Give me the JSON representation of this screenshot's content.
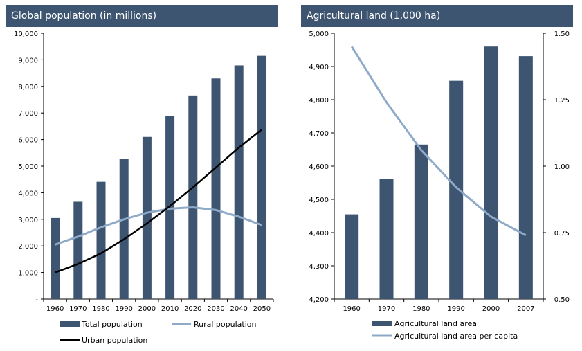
{
  "colors": {
    "title_bg": "#3d5570",
    "bar": "#3d5570",
    "rural_line": "#8fa9c8",
    "urban_line": "#000000",
    "per_capita_line": "#8fa9c8"
  },
  "chart_data": [
    {
      "type": "bar",
      "title": "Global population (in millions)",
      "categories": [
        "1960",
        "1970",
        "1980",
        "1990",
        "2000",
        "2010",
        "2020",
        "2030",
        "2040",
        "2050"
      ],
      "ylim": [
        0,
        10000
      ],
      "y_ticks": [
        "-",
        "1,000",
        "2,000",
        "3,000",
        "4,000",
        "5,000",
        "6,000",
        "7,000",
        "8,000",
        "9,000",
        "10,000"
      ],
      "series": [
        {
          "name": "Total population",
          "kind": "bar",
          "values": [
            3050,
            3660,
            4410,
            5260,
            6100,
            6900,
            7660,
            8300,
            8790,
            9150
          ]
        },
        {
          "name": "Rural population",
          "kind": "line",
          "values": [
            2050,
            2350,
            2700,
            3000,
            3250,
            3400,
            3450,
            3350,
            3100,
            2780
          ]
        },
        {
          "name": "Urban population",
          "kind": "line",
          "values": [
            1000,
            1320,
            1720,
            2250,
            2850,
            3500,
            4200,
            4950,
            5700,
            6380
          ]
        }
      ],
      "legend": [
        "Total population",
        "Rural population",
        "Urban population"
      ],
      "grid": false
    },
    {
      "type": "bar",
      "title": "Agricultural land (1,000 ha)",
      "categories": [
        "1960",
        "1970",
        "1980",
        "1990",
        "2000",
        "2007"
      ],
      "ylim": [
        4200,
        5000
      ],
      "y_ticks": [
        "4,200",
        "4,300",
        "4,400",
        "4,500",
        "4,600",
        "4,700",
        "4,800",
        "4,900",
        "5,000"
      ],
      "y2lim": [
        0.5,
        1.5
      ],
      "y2_ticks": [
        "0.50",
        "0.75",
        "1.00",
        "1.25",
        "1.50"
      ],
      "series": [
        {
          "name": "Agricultural land area",
          "kind": "bar",
          "axis": "left",
          "values": [
            4455,
            4562,
            4665,
            4857,
            4960,
            4931
          ]
        },
        {
          "name": "Agricultural land area per capita",
          "kind": "line",
          "axis": "right",
          "values": [
            1.45,
            1.24,
            1.06,
            0.92,
            0.81,
            0.74
          ]
        }
      ],
      "legend": [
        "Agricultural land area",
        "Agricultural land area per capita"
      ],
      "grid": false
    }
  ]
}
